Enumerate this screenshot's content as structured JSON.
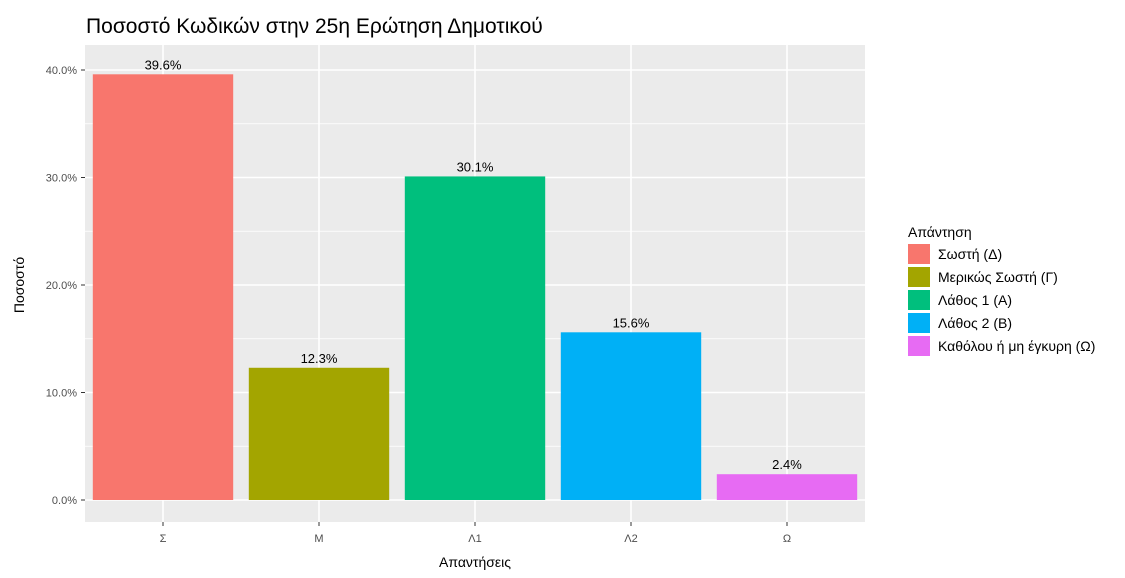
{
  "chart_data": {
    "type": "bar",
    "title": "Ποσοστό Κωδικών στην 25η Ερώτηση Δημοτικού",
    "xlabel": "Απαντήσεις",
    "ylabel": "Ποσοστό",
    "categories": [
      "Σ",
      "Μ",
      "Λ1",
      "Λ2",
      "Ω"
    ],
    "values": [
      39.6,
      12.3,
      30.1,
      15.6,
      2.4
    ],
    "value_labels": [
      "39.6%",
      "12.3%",
      "30.1%",
      "15.6%",
      "2.4%"
    ],
    "colors": [
      "#F8766D",
      "#A3A500",
      "#00BF7D",
      "#00B0F6",
      "#E76BF3"
    ],
    "ylim": [
      0,
      40
    ],
    "yticks": [
      0,
      10,
      20,
      30,
      40
    ],
    "ytick_labels": [
      "0.0%",
      "10.0%",
      "20.0%",
      "30.0%",
      "40.0%"
    ],
    "grid": true,
    "legend": {
      "title": "Απάντηση",
      "position": "right",
      "entries": [
        "Σωστή (Δ)",
        "Μερικώς Σωστή (Γ)",
        "Λάθος 1 (Α)",
        "Λάθος 2 (Β)",
        "Καθόλου ή μη έγκυρη (Ω)"
      ]
    }
  }
}
